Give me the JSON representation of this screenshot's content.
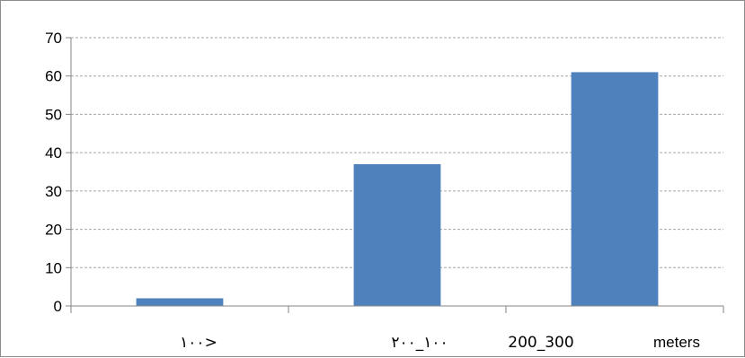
{
  "chart_data": {
    "type": "bar",
    "categories": [
      "١٠٠>",
      "٢٠٠_١٠٠",
      "200_300"
    ],
    "values": [
      2,
      37,
      61
    ],
    "ylim": [
      0,
      70
    ],
    "yticks": [
      0,
      10,
      20,
      30,
      40,
      50,
      60,
      70
    ],
    "grid": true,
    "xlabel": "meters",
    "colors": {
      "bar": "#4f81bd",
      "grid": "#a6a6a6",
      "axis": "#868686"
    }
  }
}
